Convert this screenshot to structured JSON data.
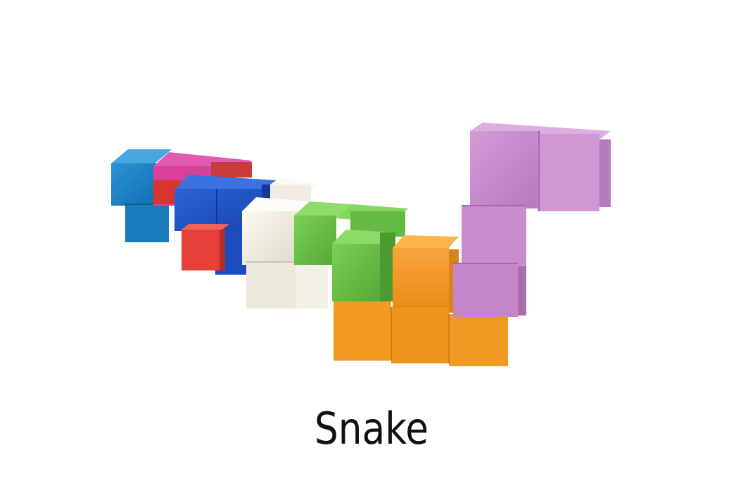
{
  "caption": "Snake",
  "colors": {
    "background": "#ffffff",
    "blue_light": "#1f86c8",
    "magenta": "#d94aa0",
    "blue_dark": "#1f55c9",
    "red": "#e23e36",
    "white_block": "#f1efe4",
    "green": "#6cc14a",
    "orange": "#f39b26",
    "lavender": "#c98cce"
  },
  "pieces": [
    {
      "name": "light-blue-piece",
      "color_key": "blue_light"
    },
    {
      "name": "magenta-red-piece",
      "color_key": "magenta"
    },
    {
      "name": "dark-blue-piece",
      "color_key": "blue_dark"
    },
    {
      "name": "red-piece",
      "color_key": "red"
    },
    {
      "name": "white-piece",
      "color_key": "white_block"
    },
    {
      "name": "green-piece",
      "color_key": "green"
    },
    {
      "name": "orange-piece",
      "color_key": "orange"
    },
    {
      "name": "lavender-piece",
      "color_key": "lavender"
    }
  ]
}
